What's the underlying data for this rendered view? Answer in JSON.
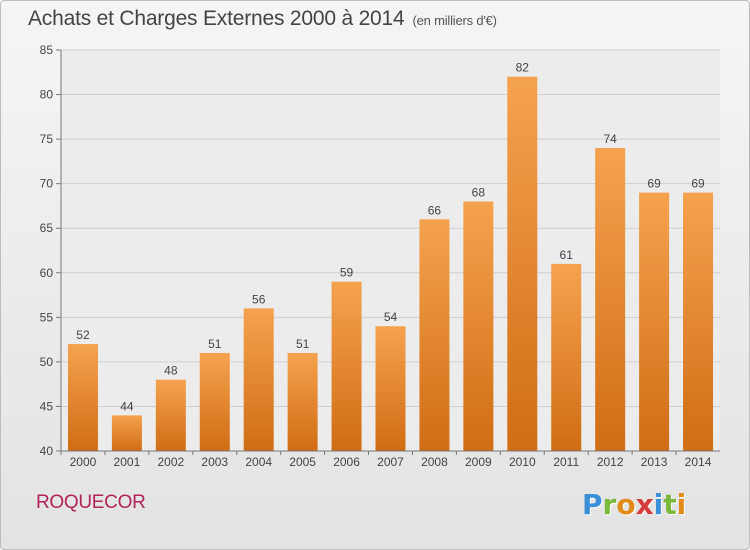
{
  "title": "Achats et Charges Externes 2000 à 2014",
  "subtitle": "(en milliers d'€)",
  "commune": "ROQUECOR",
  "logo": {
    "letters": [
      {
        "char": "P",
        "color": "#3a8fd6"
      },
      {
        "char": "r",
        "color": "#7ab93a"
      },
      {
        "char": "o",
        "color": "#e38b1a"
      },
      {
        "char": "x",
        "color": "#d63a3a"
      },
      {
        "char": "i",
        "color": "#3a8fd6"
      },
      {
        "char": "t",
        "color": "#7ab93a"
      },
      {
        "char": "i",
        "color": "#e38b1a"
      }
    ]
  },
  "colors": {
    "bar_top": "#f5a24e",
    "bar_bottom": "#d06d14",
    "commune": "#b0235b"
  },
  "chart_data": {
    "type": "bar",
    "categories": [
      "2000",
      "2001",
      "2002",
      "2003",
      "2004",
      "2005",
      "2006",
      "2007",
      "2008",
      "2009",
      "2010",
      "2011",
      "2012",
      "2013",
      "2014"
    ],
    "values": [
      52,
      44,
      48,
      51,
      56,
      51,
      59,
      54,
      66,
      68,
      82,
      61,
      74,
      69,
      69
    ],
    "ylim": [
      40,
      85
    ],
    "yticks": [
      40,
      45,
      50,
      55,
      60,
      65,
      70,
      75,
      80,
      85
    ],
    "grid": true,
    "data_labels": true
  }
}
